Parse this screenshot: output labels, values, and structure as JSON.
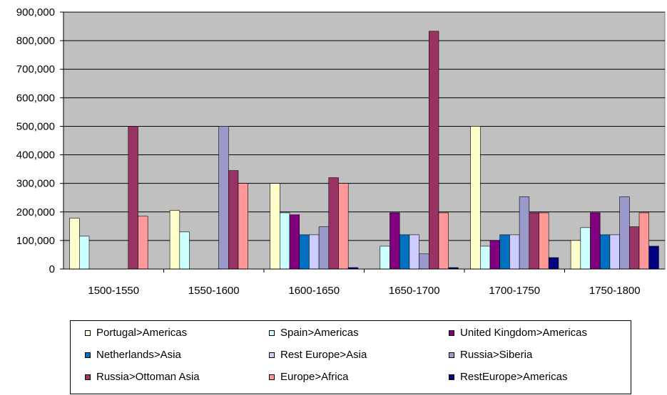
{
  "chart_data": {
    "type": "bar",
    "categories": [
      "1500-1550",
      "1550-1600",
      "1600-1650",
      "1650-1700",
      "1700-1750",
      "1750-1800"
    ],
    "ylim": [
      0,
      900000
    ],
    "y_ticks": [
      "0",
      "100,000",
      "200,000",
      "300,000",
      "400,000",
      "500,000",
      "600,000",
      "700,000",
      "800,000",
      "900,000"
    ],
    "grid": true,
    "plot_background": "#c0c0c0",
    "legend_position": "bottom",
    "series": [
      {
        "name": "Portugal>Americas",
        "color": "#ffffcc",
        "values": [
          178000,
          205000,
          300000,
          0,
          500000,
          100000
        ]
      },
      {
        "name": "Spain>Americas",
        "color": "#ccffff",
        "values": [
          115000,
          130000,
          197000,
          80000,
          80000,
          145000
        ]
      },
      {
        "name": "United Kingdom>Americas",
        "color": "#800080",
        "values": [
          0,
          0,
          190000,
          197000,
          100000,
          197000
        ]
      },
      {
        "name": "Netherlands>Asia",
        "color": "#0070c0",
        "values": [
          0,
          0,
          120000,
          120000,
          120000,
          120000
        ]
      },
      {
        "name": "Rest Europe>Asia",
        "color": "#ccccff",
        "values": [
          0,
          0,
          120000,
          120000,
          120000,
          120000
        ]
      },
      {
        "name": "Russia>Siberia",
        "color": "#9999cc",
        "values": [
          0,
          500000,
          148000,
          53000,
          253000,
          253000
        ]
      },
      {
        "name": "Russia>Ottoman Asia",
        "color": "#993366",
        "values": [
          500000,
          345000,
          320000,
          833000,
          197000,
          148000
        ]
      },
      {
        "name": "Europe>Africa",
        "color": "#ff9999",
        "values": [
          185000,
          300000,
          300000,
          197000,
          197000,
          197000
        ]
      },
      {
        "name": "RestEurope>Americas",
        "color": "#000080",
        "values": [
          0,
          0,
          5000,
          5000,
          40000,
          80000
        ]
      }
    ]
  }
}
